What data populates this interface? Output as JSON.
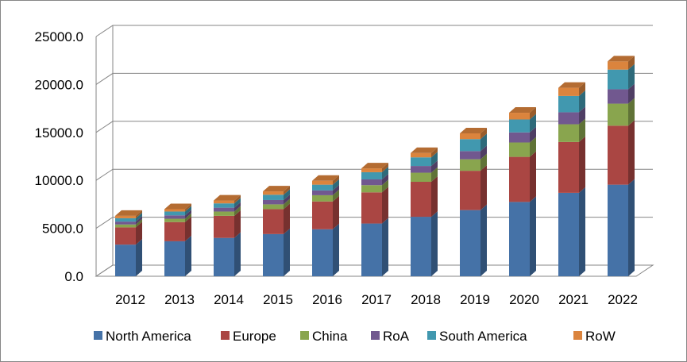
{
  "chart_data": {
    "type": "bar",
    "stacked": true,
    "three_d": true,
    "title": "",
    "xlabel": "",
    "ylabel": "",
    "ylim": [
      0,
      25000
    ],
    "yticks": [
      0,
      5000,
      10000,
      15000,
      20000,
      25000
    ],
    "ytick_labels": [
      "0.0",
      "5000.0",
      "10000.0",
      "15000.0",
      "20000.0",
      "25000.0"
    ],
    "grid": true,
    "legend_position": "bottom",
    "categories": [
      "2012",
      "2013",
      "2014",
      "2015",
      "2016",
      "2017",
      "2018",
      "2019",
      "2020",
      "2021",
      "2022"
    ],
    "series": [
      {
        "name": "North America",
        "color": "#4572A7",
        "values": [
          3300,
          3650,
          4000,
          4400,
          4900,
          5500,
          6200,
          6900,
          7750,
          8700,
          9550
        ]
      },
      {
        "name": "Europe",
        "color": "#AA4643",
        "values": [
          1800,
          2000,
          2300,
          2600,
          2900,
          3250,
          3650,
          4100,
          4700,
          5300,
          6150
        ]
      },
      {
        "name": "China",
        "color": "#89A54E",
        "values": [
          300,
          350,
          450,
          500,
          650,
          750,
          950,
          1200,
          1500,
          1850,
          2300
        ]
      },
      {
        "name": "RoA",
        "color": "#71588F",
        "values": [
          300,
          350,
          400,
          450,
          500,
          600,
          700,
          850,
          1050,
          1250,
          1500
        ]
      },
      {
        "name": "South America",
        "color": "#4198AF",
        "values": [
          350,
          400,
          450,
          550,
          600,
          750,
          900,
          1250,
          1350,
          1700,
          2050
        ]
      },
      {
        "name": "RoW",
        "color": "#DB843D",
        "values": [
          250,
          250,
          300,
          350,
          400,
          400,
          450,
          600,
          700,
          850,
          850
        ]
      }
    ]
  }
}
